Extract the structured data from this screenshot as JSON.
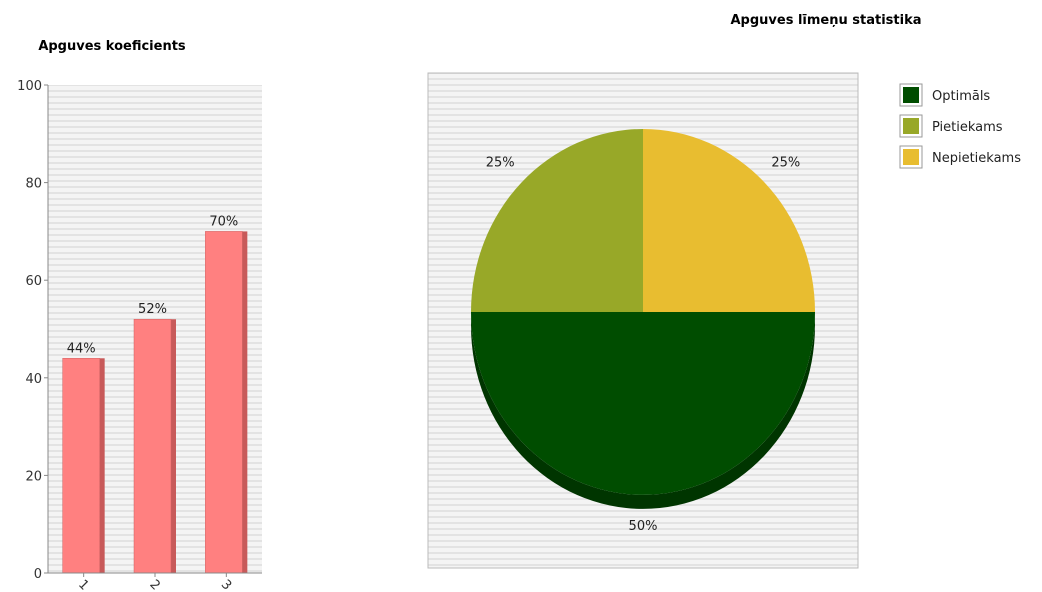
{
  "chart_data": [
    {
      "type": "bar",
      "title": "Apguves koeficients",
      "categories": [
        "1",
        "2",
        "3"
      ],
      "values": [
        44,
        52,
        70
      ],
      "value_labels": [
        "44%",
        "52%",
        "70%"
      ],
      "ylim": [
        0,
        100
      ],
      "yticks": [
        0,
        20,
        40,
        60,
        80,
        100
      ],
      "colors": {
        "bar": "#ff8080",
        "bar_side": "#c85a5a",
        "grid": "#e6e6e6"
      },
      "grid": true
    },
    {
      "type": "pie",
      "title": "Apguves līmeņu statistika",
      "slices": [
        {
          "name": "Optimāls",
          "value": 50,
          "label": "50%",
          "color": "#004d00",
          "shade": "#003500"
        },
        {
          "name": "Pietiekams",
          "value": 25,
          "label": "25%",
          "color": "#98a828",
          "shade": "#6e7a1c"
        },
        {
          "name": "Nepietiekams",
          "value": 25,
          "label": "25%",
          "color": "#e8bd30",
          "shade": "#b08f22"
        }
      ],
      "legend": "right"
    }
  ]
}
